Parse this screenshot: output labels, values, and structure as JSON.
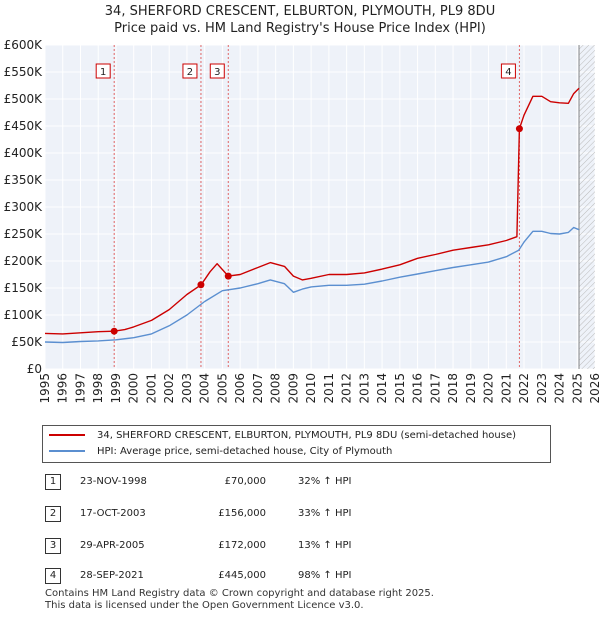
{
  "title_line1": "34, SHERFORD CRESCENT, ELBURTON, PLYMOUTH, PL9 8DU",
  "title_line2": "Price paid vs. HM Land Registry's House Price Index (HPI)",
  "chart_data": {
    "type": "line",
    "title": "34, SHERFORD CRESCENT, ELBURTON, PLYMOUTH, PL9 8DU — Price paid vs. HM Land Registry's House Price Index (HPI)",
    "xlabel": "",
    "ylabel": "",
    "xlim": [
      1995,
      2026
    ],
    "ylim": [
      0,
      600000
    ],
    "y_ticks": [
      0,
      50000,
      100000,
      150000,
      200000,
      250000,
      300000,
      350000,
      400000,
      450000,
      500000,
      550000,
      600000
    ],
    "y_tick_labels": [
      "£0",
      "£50K",
      "£100K",
      "£150K",
      "£200K",
      "£250K",
      "£300K",
      "£350K",
      "£400K",
      "£450K",
      "£500K",
      "£550K",
      "£600K"
    ],
    "x_ticks": [
      1995,
      1996,
      1997,
      1998,
      1999,
      2000,
      2001,
      2002,
      2003,
      2004,
      2005,
      2006,
      2007,
      2008,
      2009,
      2010,
      2011,
      2012,
      2013,
      2014,
      2015,
      2016,
      2017,
      2018,
      2019,
      2020,
      2021,
      2022,
      2023,
      2024,
      2025,
      2026
    ],
    "x_tick_labels": [
      "1995",
      "1996",
      "1997",
      "1998",
      "1999",
      "2000",
      "2001",
      "2002",
      "2003",
      "2004",
      "2005",
      "2006",
      "2007",
      "2008",
      "2009",
      "2010",
      "2011",
      "2012",
      "2013",
      "2014",
      "2015",
      "2016",
      "2017",
      "2018",
      "2019",
      "2020",
      "2021",
      "2022",
      "2023",
      "2024",
      "2025",
      "2026"
    ],
    "grid": true,
    "hatched_future_from": 2025.1,
    "series": [
      {
        "name": "34, SHERFORD CRESCENT, ELBURTON, PLYMOUTH, PL9 8DU (semi-detached house)",
        "color": "#cc0000",
        "x": [
          1995,
          1996,
          1997,
          1998,
          1998.9,
          1999.5,
          2000,
          2001,
          2002,
          2003,
          2003.8,
          2004.3,
          2004.7,
          2005.33,
          2006,
          2007,
          2007.7,
          2008.5,
          2009,
          2009.5,
          2010,
          2011,
          2012,
          2013,
          2014,
          2015,
          2016,
          2017,
          2018,
          2019,
          2020,
          2021,
          2021.6,
          2021.74,
          2022,
          2022.5,
          2023,
          2023.5,
          2024,
          2024.5,
          2024.8,
          2025.1
        ],
        "y": [
          66000,
          65000,
          67000,
          69000,
          70000,
          73000,
          78000,
          90000,
          110000,
          138000,
          156000,
          180000,
          195000,
          172000,
          175000,
          188000,
          197000,
          190000,
          172000,
          165000,
          168000,
          175000,
          175000,
          178000,
          185000,
          193000,
          205000,
          212000,
          220000,
          225000,
          230000,
          238000,
          245000,
          445000,
          470000,
          505000,
          505000,
          495000,
          493000,
          492000,
          510000,
          520000
        ]
      },
      {
        "name": "HPI: Average price, semi-detached house, City of Plymouth",
        "color": "#5b8fd0",
        "x": [
          1995,
          1996,
          1997,
          1998,
          1999,
          2000,
          2001,
          2002,
          2003,
          2004,
          2005,
          2006,
          2007,
          2007.7,
          2008.5,
          2009,
          2009.5,
          2010,
          2011,
          2012,
          2013,
          2014,
          2015,
          2016,
          2017,
          2018,
          2019,
          2020,
          2021,
          2021.7,
          2022,
          2022.5,
          2023,
          2023.5,
          2024,
          2024.5,
          2024.8,
          2025.1
        ],
        "y": [
          50000,
          49000,
          51000,
          52000,
          54000,
          58000,
          65000,
          80000,
          100000,
          125000,
          145000,
          150000,
          158000,
          165000,
          158000,
          142000,
          148000,
          152000,
          155000,
          155000,
          157000,
          163000,
          170000,
          176000,
          182000,
          188000,
          193000,
          198000,
          208000,
          220000,
          235000,
          255000,
          255000,
          251000,
          250000,
          253000,
          262000,
          258000
        ]
      }
    ],
    "sales": [
      {
        "label": "1",
        "x": 1998.9,
        "y": 70000
      },
      {
        "label": "2",
        "x": 2003.79,
        "y": 156000
      },
      {
        "label": "3",
        "x": 2005.33,
        "y": 172000
      },
      {
        "label": "4",
        "x": 2021.74,
        "y": 445000
      }
    ]
  },
  "legend": {
    "property_label": "34, SHERFORD CRESCENT, ELBURTON, PLYMOUTH, PL9 8DU (semi-detached house)",
    "hpi_label": "HPI: Average price, semi-detached house, City of Plymouth",
    "property_color": "#cc0000",
    "hpi_color": "#5b8fd0"
  },
  "transactions": [
    {
      "num": "1",
      "date": "23-NOV-1998",
      "price": "£70,000",
      "pct": "32% ↑ HPI"
    },
    {
      "num": "2",
      "date": "17-OCT-2003",
      "price": "£156,000",
      "pct": "33% ↑ HPI"
    },
    {
      "num": "3",
      "date": "29-APR-2005",
      "price": "£172,000",
      "pct": "13% ↑ HPI"
    },
    {
      "num": "4",
      "date": "28-SEP-2021",
      "price": "£445,000",
      "pct": "98% ↑ HPI"
    }
  ],
  "footer": {
    "line1": "Contains HM Land Registry data © Crown copyright and database right 2025.",
    "line2": "This data is licensed under the Open Government Licence v3.0."
  }
}
